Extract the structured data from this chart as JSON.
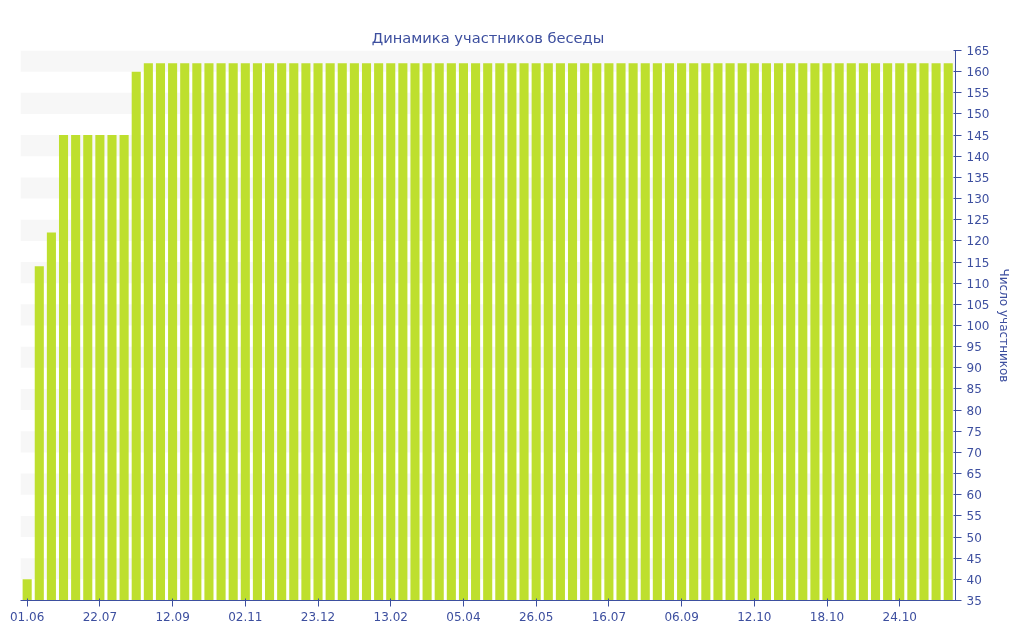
{
  "chart_data": {
    "type": "bar",
    "title": "Динамика участников беседы",
    "ylabel": "Число участников",
    "categories": [
      "01.06",
      null,
      null,
      null,
      null,
      null,
      "22.07",
      null,
      null,
      null,
      null,
      null,
      "12.09",
      null,
      null,
      null,
      null,
      null,
      "02.11",
      null,
      null,
      null,
      null,
      null,
      "23.12",
      null,
      null,
      null,
      null,
      null,
      "13.02",
      null,
      null,
      null,
      null,
      null,
      "05.04",
      null,
      null,
      null,
      null,
      null,
      "26.05",
      null,
      null,
      null,
      null,
      null,
      "16.07",
      null,
      null,
      null,
      null,
      null,
      "06.09",
      null,
      null,
      null,
      null,
      null,
      "12.10",
      null,
      null,
      null,
      null,
      null,
      "18.10",
      null,
      null,
      null,
      null,
      null,
      "24.10",
      null,
      null,
      null,
      null
    ],
    "values": [
      40,
      114,
      122,
      145,
      145,
      145,
      145,
      145,
      145,
      160,
      162,
      162,
      162,
      162,
      162,
      162,
      162,
      162,
      162,
      162,
      162,
      162,
      162,
      162,
      162,
      162,
      162,
      162,
      162,
      162,
      162,
      162,
      162,
      162,
      162,
      162,
      162,
      162,
      162,
      162,
      162,
      162,
      162,
      162,
      162,
      162,
      162,
      162,
      162,
      162,
      162,
      162,
      162,
      162,
      162,
      162,
      162,
      162,
      162,
      162,
      162,
      162,
      162,
      162,
      162,
      162,
      162,
      162,
      162,
      162,
      162,
      162,
      162,
      162,
      162,
      162,
      162
    ],
    "color": "#bedf2e",
    "ylim": [
      35,
      165
    ],
    "yticks": [
      35,
      40,
      45,
      50,
      55,
      60,
      65,
      70,
      75,
      80,
      85,
      90,
      95,
      100,
      105,
      110,
      115,
      120,
      125,
      130,
      135,
      140,
      145,
      150,
      155,
      160,
      165
    ],
    "grid": false
  }
}
